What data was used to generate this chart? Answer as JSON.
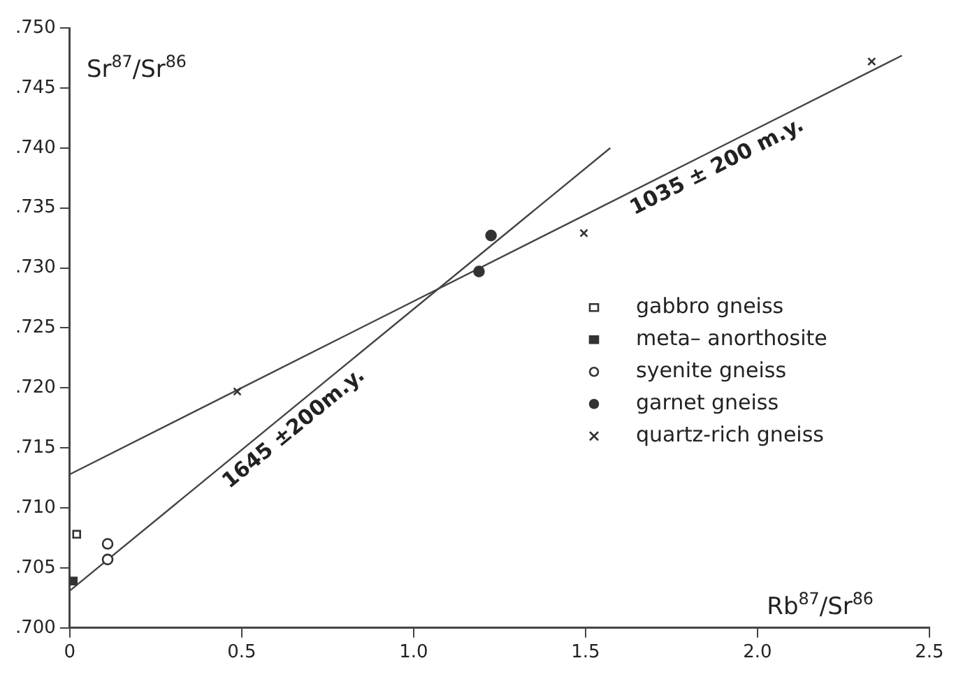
{
  "chart_data": {
    "type": "scatter",
    "xlabel": "Rb$^{87}$/Sr$^{86}$",
    "ylabel": "Sr$^{87}$/Sr$^{86}$",
    "xlim": [
      0,
      2.5
    ],
    "xticks": [
      0,
      0.5,
      {
        "value": 1,
        "label": "1.0"
      },
      1.5,
      {
        "value": 2,
        "label": "2.0"
      },
      2.5
    ],
    "ylim": [
      0.7,
      0.75
    ],
    "yticks": [
      {
        "value": 0.7,
        "label": ".700"
      },
      {
        "value": 0.705,
        "label": ".705"
      },
      {
        "value": 0.71,
        "label": ".710"
      },
      {
        "value": 0.715,
        "label": ".715"
      },
      {
        "value": 0.72,
        "label": ".720"
      },
      {
        "value": 0.725,
        "label": ".725"
      },
      {
        "value": 0.73,
        "label": ".730"
      },
      {
        "value": 0.735,
        "label": ".735"
      },
      {
        "value": 0.74,
        "label": ".740"
      },
      {
        "value": 0.745,
        "label": ".745"
      },
      {
        "value": 0.75,
        "label": ".750"
      }
    ],
    "grid": false,
    "legend": "right",
    "series": [
      {
        "name": "gabbro gneiss",
        "marker": "square",
        "color": "#ffffff",
        "x": [
          0.02
        ],
        "values": [
          0.7078
        ]
      },
      {
        "name": "meta– anorthosite",
        "marker": "square",
        "color": "#333333",
        "x": [
          0.01
        ],
        "values": [
          0.7039
        ]
      },
      {
        "name": "syenite gneiss",
        "marker": "circle",
        "color": "#ffffff",
        "x": [
          0.11,
          0.11
        ],
        "values": [
          0.707,
          0.7057
        ]
      },
      {
        "name": "garnet gneiss",
        "marker": "circle",
        "color": "#333333",
        "x": [
          1.19,
          1.225
        ],
        "values": [
          0.7297,
          0.7327
        ]
      },
      {
        "name": "quartz-rich gneiss",
        "marker": "cross",
        "color": "#333333",
        "x": [
          0.487,
          1.495,
          2.332
        ],
        "values": [
          0.7197,
          0.7329,
          0.7472
        ]
      },
      {
        "type": "line",
        "marker": "none",
        "color": "#444444",
        "x": [
          0,
          1.572
        ],
        "values": [
          0.7031,
          0.74
        ]
      },
      {
        "type": "line",
        "marker": "none",
        "color": "#444444",
        "x": [
          0,
          2.42
        ],
        "values": [
          0.7128,
          0.7477
        ]
      }
    ],
    "annotations": [
      {
        "text": "1645 ±200m.y.",
        "x": 0.62,
        "y": 0.7177
      },
      {
        "text": "1035 ± 200 m.y.",
        "x": 1.86,
        "y": 0.7397
      }
    ]
  }
}
